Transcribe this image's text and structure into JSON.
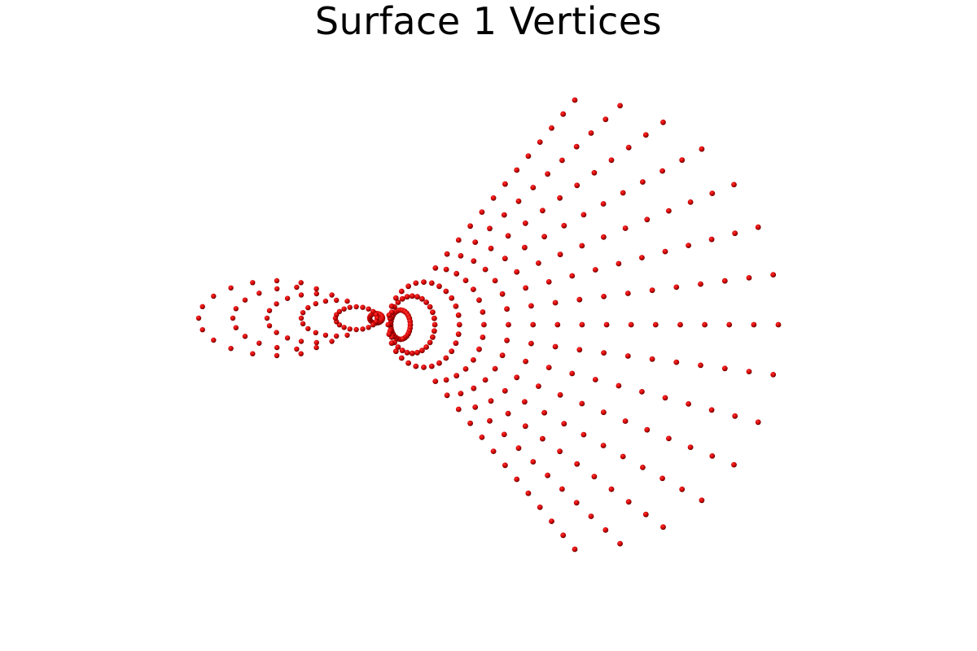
{
  "viewer": {
    "title": "Surface 1 Vertices",
    "background_color": "#ffffff",
    "point_color": "#d40000",
    "point_shading_color": "#5a0000",
    "point_highlight_color": "#ff3a3a"
  }
}
